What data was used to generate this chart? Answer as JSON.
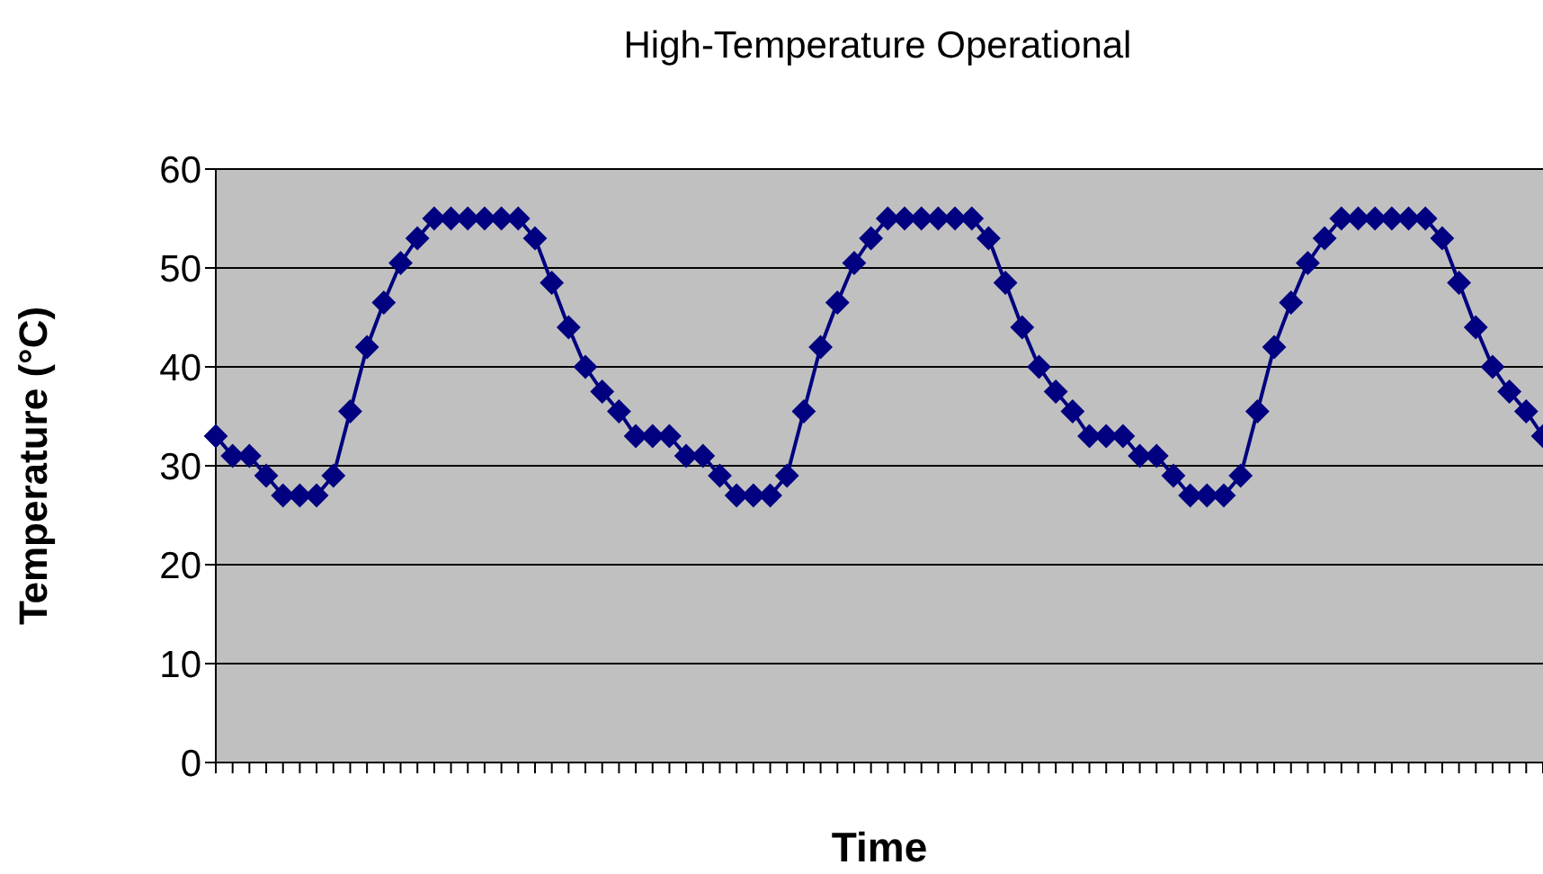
{
  "chart_data": {
    "type": "line",
    "title": "High-Temperature Operational",
    "xlabel": "Time",
    "ylabel": "Temperature (°C)",
    "categories": [
      null,
      null,
      null,
      null,
      null,
      null,
      null,
      null,
      null,
      null,
      null,
      null,
      null,
      null,
      null,
      null,
      null,
      null,
      null,
      null,
      null,
      null,
      null,
      null,
      null,
      null,
      null,
      null,
      null,
      null,
      null,
      null,
      null,
      null,
      null,
      null,
      null,
      null,
      null,
      null,
      null,
      null,
      null,
      null,
      null,
      null,
      null,
      null,
      null,
      null,
      null,
      null,
      null,
      null,
      null,
      null,
      null,
      null,
      null,
      null,
      null,
      null,
      null,
      null,
      null,
      null,
      null,
      null,
      null,
      null,
      null,
      null,
      null,
      null,
      null,
      null,
      null,
      null,
      null,
      null
    ],
    "series": [
      {
        "color": "#000080",
        "values": [
          33,
          31,
          31,
          29,
          27,
          27,
          27,
          29,
          35.5,
          42,
          46.5,
          50.5,
          53,
          55,
          55,
          55,
          55,
          55,
          55,
          53,
          48.5,
          44,
          40,
          37.5,
          35.5,
          33,
          33,
          33,
          31,
          31,
          29,
          27,
          27,
          27,
          29,
          35.5,
          42,
          46.5,
          50.5,
          53,
          55,
          55,
          55,
          55,
          55,
          55,
          53,
          48.5,
          44,
          40,
          37.5,
          35.5,
          33,
          33,
          33,
          31,
          31,
          29,
          27,
          27,
          27,
          29,
          35.5,
          42,
          46.5,
          50.5,
          53,
          55,
          55,
          55,
          55,
          55,
          55,
          53,
          48.5,
          44,
          40,
          37.5,
          35.5,
          33
        ]
      }
    ],
    "ylim": [
      0,
      60
    ],
    "yticks": [
      0,
      10,
      20,
      30,
      40,
      50,
      60
    ],
    "grid": "y",
    "marker": "diamond",
    "line_style": "solid",
    "legend": false
  }
}
